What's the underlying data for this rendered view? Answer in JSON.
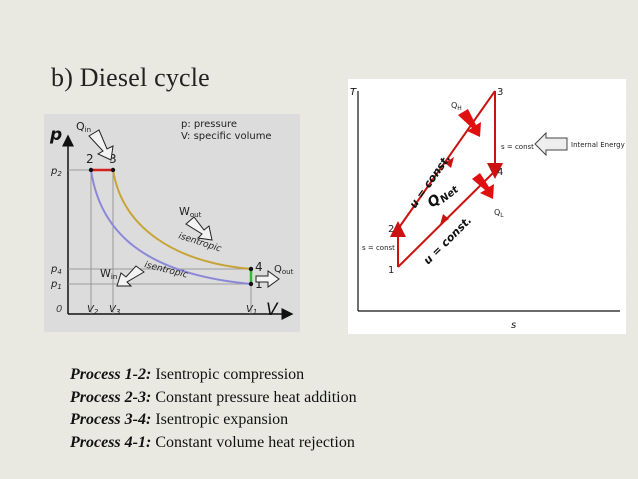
{
  "slide": {
    "title": "b) Diesel cycle"
  },
  "pv_diagram": {
    "axis_y": "p",
    "axis_x": "V",
    "origin": "0",
    "legend_pressure": "p: pressure",
    "legend_volume": "V: specific volume",
    "p2": "p",
    "p2_sub": "2",
    "p4": "p",
    "p4_sub": "4",
    "p1": "p",
    "p1_sub": "1",
    "v2": "V",
    "v2_sub": "2",
    "v3": "V",
    "v3_sub": "3",
    "v1": "V",
    "v1_sub": "1",
    "point_2": "2",
    "point_3": "3",
    "point_4": "4",
    "point_1": "1",
    "q_in": "Q",
    "q_in_sub": "in",
    "q_out": "Q",
    "q_out_sub": "out",
    "w_out": "W",
    "w_out_sub": "out",
    "w_in": "W",
    "w_in_sub": "in",
    "isentropic_upper": "isentropic",
    "isentropic_lower": "isentropic",
    "colors": {
      "upper_curve": "#c8a436",
      "lower_curve": "#8c88d8",
      "const_p": "#d62020",
      "const_v": "#2dc02d"
    }
  },
  "ts_diagram": {
    "axis_y": "T",
    "axis_x": "s",
    "point_1": "1",
    "point_2": "2",
    "point_3": "3",
    "point_4": "4",
    "qh": "Q",
    "qh_sub": "H",
    "ql": "Q",
    "ql_sub": "L",
    "qnet": "Q",
    "qnet_sub": "Net",
    "u_const_upper": "u = const.",
    "u_const_lower": "u = const.",
    "s_const_right": "s = const",
    "s_const_left": "s = const",
    "internal_energy": "Internal Energy",
    "colors": {
      "process_line": "#cc1111",
      "arrow": "#e01010"
    }
  },
  "processes": [
    {
      "name": "Process 1-2:",
      "description": "Isentropic compression"
    },
    {
      "name": "Process 2-3:",
      "description": "Constant pressure heat addition"
    },
    {
      "name": "Process 3-4:",
      "description": "Isentropic expansion"
    },
    {
      "name": "Process 4-1:",
      "description": "Constant volume heat rejection"
    }
  ]
}
